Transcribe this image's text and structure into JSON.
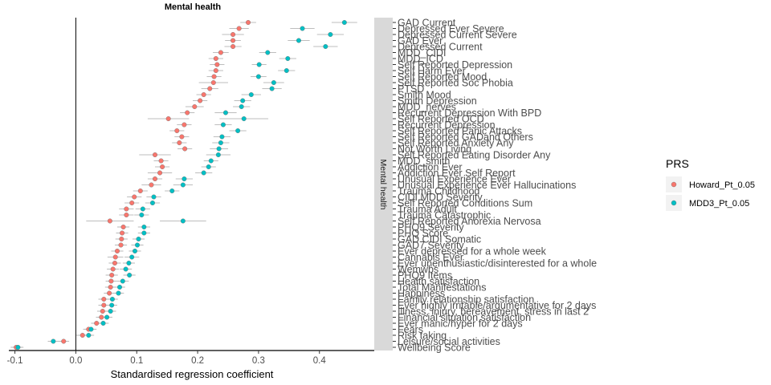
{
  "chart_data": {
    "type": "scatter",
    "title": "Mental health",
    "xlabel": "Standardised regression coefficient",
    "ylabel": "",
    "facet_strip": "Mental health",
    "xlim": [
      -0.11,
      0.49
    ],
    "x_ticks": [
      -0.1,
      0.0,
      0.1,
      0.2,
      0.3,
      0.4
    ],
    "x_tick_labels": [
      "-0.1",
      "0.0",
      "0.1",
      "0.2",
      "0.3",
      "0.4"
    ],
    "vline_at": 0,
    "grid": false,
    "legend": {
      "title": "PRS",
      "position": "right",
      "entries": [
        "Howard_Pt_0.05",
        "MDD3_Pt_0.05"
      ]
    },
    "colors": {
      "Howard_Pt_0.05": "#F8766D",
      "MDD3_Pt_0.05": "#00BFC4"
    },
    "categories": [
      "GAD Current",
      "Depressed Ever Severe",
      "Depressed Current Severe",
      "GAD Ever",
      "Depressed Current",
      "MDD_CIDI",
      "MDD_ICD",
      "Self Reported Depression",
      "Self Harm Ever",
      "Self Reported Mood",
      "Self Reported Soc Phobia",
      "PTSD",
      "Smith Mood",
      "Smith Depression",
      "MDD_nerves",
      "Recurrent Depression With BPD",
      "Self Reported OCD",
      "Recurrent Depression",
      "Self Reported Panic Attacks",
      "Self Reported GADand Others",
      "Self Reported Anxiety Any",
      "Not Worth Living",
      "Self Reported Eating Disorder Any",
      "MDD_smith",
      "Addiction Ever",
      "Addiction Ever Self Report",
      "Unusual Experience Ever",
      "Unusual Experience Ever Hallucinations",
      "Trauma Childhood",
      "CIDI MDD Severity",
      "Self Reported Conditions Sum",
      "Trauma Adult",
      "Trauma Catastrophic",
      "Self Reported Anorexia Nervosa",
      "PHQ9 Severity",
      "PHQ Score",
      "GAD CIDI Somatic",
      "GAD7 Severity",
      "Ever depressed for a whole week",
      "Cannabis Ever",
      "Ever unenthusiastic/disinterested for a whole",
      "Wemwbs",
      "PHQ9 Items",
      "Health satisfaction",
      "Total Manifestations",
      "Happiness",
      "Family relationship satisfaction",
      "Ever highly irritable/argumentative for 2 days",
      "Illness, injury, bereavement, stress in last 2",
      "Financial situation satisfaction",
      "Ever manic/hyper for 2 days",
      "Fears",
      "Risk taking",
      "Leisure/social activities",
      "Wellbeing Score"
    ],
    "series": [
      {
        "name": "Howard_Pt_0.05",
        "values": [
          0.283,
          0.268,
          0.258,
          0.258,
          0.258,
          0.238,
          0.23,
          0.232,
          0.23,
          0.227,
          0.226,
          0.22,
          0.21,
          0.204,
          0.195,
          0.183,
          0.152,
          0.178,
          0.166,
          0.174,
          0.17,
          0.179,
          0.13,
          0.14,
          0.142,
          0.138,
          0.13,
          0.124,
          0.106,
          0.096,
          0.092,
          0.083,
          0.083,
          0.056,
          0.078,
          0.076,
          0.075,
          0.074,
          0.068,
          0.065,
          0.064,
          0.061,
          0.059,
          0.058,
          0.057,
          0.055,
          0.046,
          0.046,
          0.044,
          0.042,
          0.034,
          0.021,
          0.011,
          -0.02,
          -0.098
        ],
        "ci_low": [
          0.27,
          0.252,
          0.24,
          0.245,
          0.244,
          0.225,
          0.218,
          0.22,
          0.218,
          0.215,
          0.202,
          0.206,
          0.198,
          0.192,
          0.18,
          0.171,
          0.118,
          0.166,
          0.154,
          0.162,
          0.158,
          0.167,
          0.104,
          0.128,
          0.13,
          0.118,
          0.118,
          0.108,
          0.094,
          0.084,
          0.08,
          0.071,
          0.071,
          0.017,
          0.068,
          0.066,
          0.065,
          0.064,
          0.058,
          0.052,
          0.054,
          0.051,
          0.049,
          0.049,
          0.048,
          0.046,
          0.037,
          0.037,
          0.035,
          0.033,
          0.025,
          0.012,
          0.001,
          -0.029,
          -0.107
        ],
        "ci_high": [
          0.296,
          0.284,
          0.276,
          0.271,
          0.272,
          0.251,
          0.242,
          0.244,
          0.242,
          0.239,
          0.25,
          0.234,
          0.222,
          0.216,
          0.21,
          0.195,
          0.186,
          0.19,
          0.178,
          0.186,
          0.182,
          0.191,
          0.156,
          0.152,
          0.154,
          0.158,
          0.142,
          0.14,
          0.118,
          0.108,
          0.104,
          0.095,
          0.095,
          0.095,
          0.088,
          0.086,
          0.085,
          0.084,
          0.078,
          0.078,
          0.074,
          0.071,
          0.069,
          0.067,
          0.066,
          0.064,
          0.055,
          0.055,
          0.053,
          0.051,
          0.043,
          0.03,
          0.021,
          -0.011,
          -0.089
        ]
      },
      {
        "name": "MDD3_Pt_0.05",
        "values": [
          0.441,
          0.372,
          0.418,
          0.366,
          0.41,
          0.315,
          0.348,
          0.301,
          0.346,
          0.3,
          0.325,
          0.322,
          0.288,
          0.274,
          0.272,
          0.246,
          0.276,
          0.242,
          0.266,
          0.24,
          0.238,
          0.235,
          0.234,
          0.222,
          0.218,
          0.21,
          0.178,
          0.176,
          0.158,
          0.128,
          0.126,
          0.11,
          0.108,
          0.176,
          0.112,
          0.112,
          0.103,
          0.101,
          0.097,
          0.092,
          0.087,
          0.082,
          0.088,
          0.077,
          0.072,
          0.07,
          0.06,
          0.059,
          0.057,
          0.051,
          0.045,
          0.025,
          0.021,
          -0.037,
          -0.095
        ],
        "ci_low": [
          0.42,
          0.352,
          0.396,
          0.348,
          0.39,
          0.301,
          0.334,
          0.289,
          0.332,
          0.287,
          0.308,
          0.306,
          0.272,
          0.26,
          0.258,
          0.228,
          0.236,
          0.228,
          0.252,
          0.226,
          0.224,
          0.22,
          0.214,
          0.21,
          0.206,
          0.196,
          0.164,
          0.16,
          0.146,
          0.116,
          0.114,
          0.098,
          0.096,
          0.138,
          0.102,
          0.102,
          0.093,
          0.091,
          0.087,
          0.08,
          0.077,
          0.072,
          0.078,
          0.067,
          0.063,
          0.061,
          0.051,
          0.05,
          0.048,
          0.042,
          0.036,
          0.016,
          0.012,
          -0.046,
          -0.104
        ],
        "ci_high": [
          0.462,
          0.392,
          0.44,
          0.384,
          0.43,
          0.329,
          0.362,
          0.313,
          0.36,
          0.313,
          0.342,
          0.338,
          0.304,
          0.288,
          0.286,
          0.264,
          0.316,
          0.256,
          0.28,
          0.254,
          0.252,
          0.25,
          0.254,
          0.234,
          0.23,
          0.224,
          0.192,
          0.192,
          0.17,
          0.14,
          0.138,
          0.122,
          0.12,
          0.214,
          0.122,
          0.122,
          0.113,
          0.111,
          0.107,
          0.104,
          0.097,
          0.092,
          0.098,
          0.087,
          0.081,
          0.079,
          0.069,
          0.068,
          0.066,
          0.06,
          0.054,
          0.034,
          0.03,
          -0.028,
          -0.086
        ]
      }
    ]
  }
}
